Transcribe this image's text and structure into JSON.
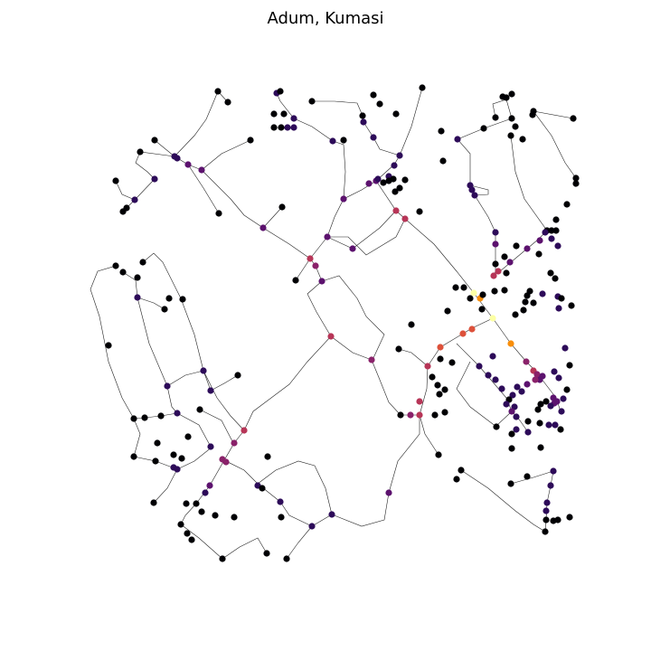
{
  "title": "Adum, Kumasi",
  "colors": {
    "background": "#ffffff",
    "road": "#222222",
    "centrality_scale": [
      "#000004",
      "#2d0b59",
      "#5c126e",
      "#8a226a",
      "#b73557",
      "#dd513a",
      "#f98e09",
      "#fcffa4"
    ]
  },
  "legend": null
}
